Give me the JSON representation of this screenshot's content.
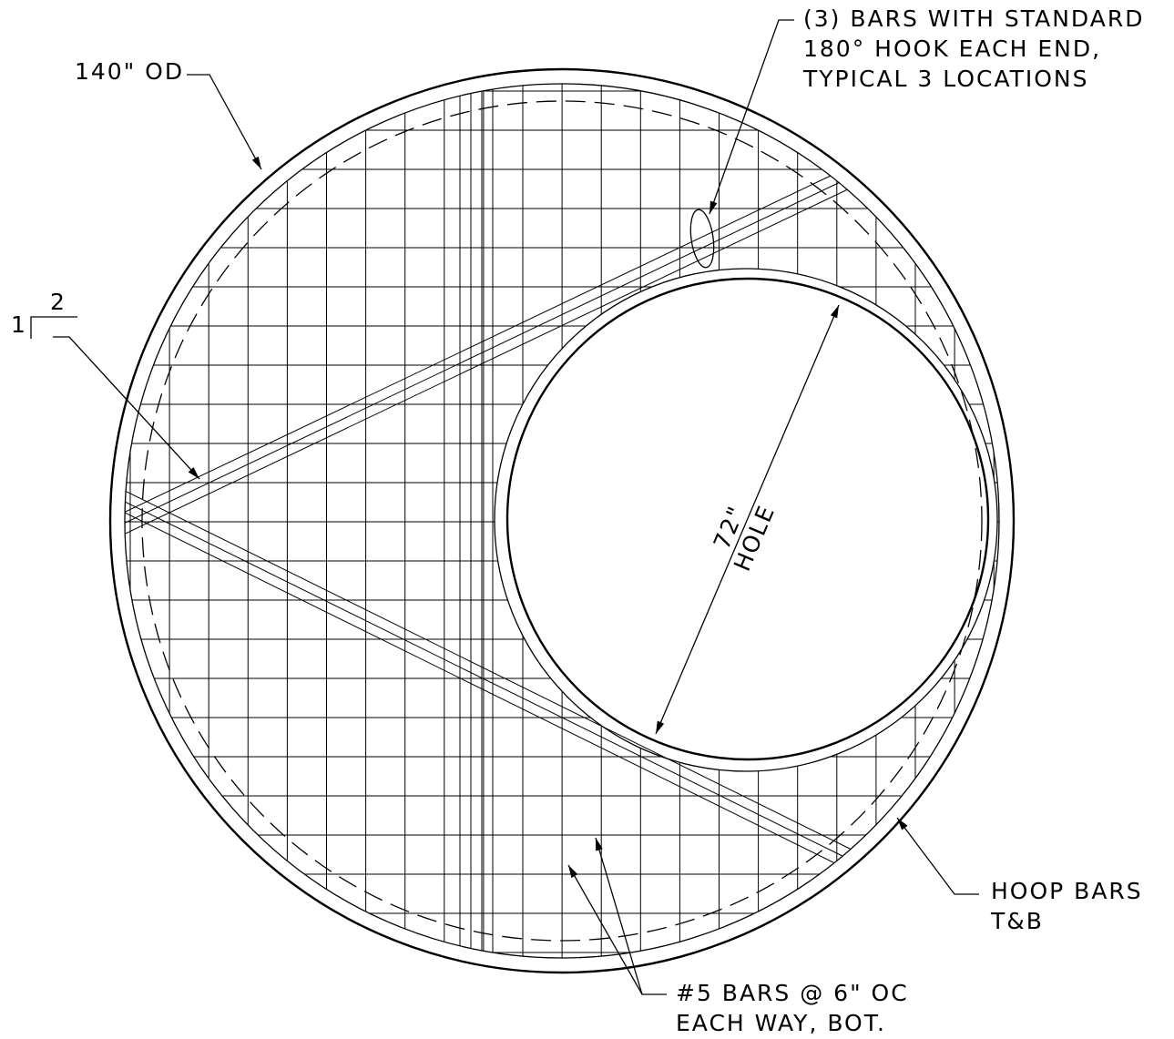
{
  "labels": {
    "bars_callout": [
      "(3) BARS WITH STANDARD",
      "180° HOOK EACH END,",
      "TYPICAL 3 LOCATIONS"
    ],
    "outer_diameter": "140\" OD",
    "slope": {
      "rise": "1",
      "run": "2"
    },
    "hole": [
      "72\"",
      "HOLE"
    ],
    "hoop_bars": [
      "HOOP BARS",
      "T&B"
    ],
    "mesh_bars": [
      "#5 BARS @ 6\" OC",
      "EACH WAY, BOT."
    ]
  }
}
